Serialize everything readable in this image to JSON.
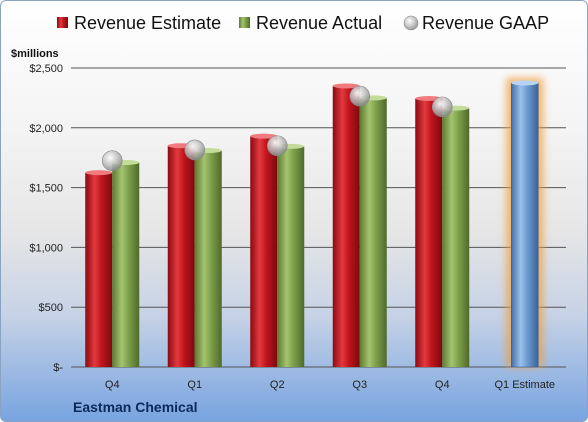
{
  "chart_data": {
    "type": "bar",
    "title": "",
    "ylabel": "$millions",
    "categories": [
      "Q4",
      "Q1",
      "Q2",
      "Q3",
      "Q4",
      "Q1 Estimate"
    ],
    "series": [
      {
        "name": "Revenue Estimate",
        "color": "#c0141c",
        "values": [
          1625,
          1850,
          1930,
          2350,
          2245,
          null
        ]
      },
      {
        "name": "Revenue Actual",
        "color": "#7ea04b",
        "values": [
          1710,
          1810,
          1845,
          2250,
          2165,
          null
        ]
      },
      {
        "name": "Revenue GAAP",
        "color": "#b8b8b8",
        "values": [
          1725,
          1815,
          1850,
          2265,
          2175,
          null
        ]
      }
    ],
    "forecast": {
      "category": "Q1 Estimate",
      "value": 2375,
      "color": "#6b9bd2",
      "highlight": "#f0a040"
    },
    "ylim": [
      0,
      2500
    ],
    "yticks": [
      0,
      500,
      1000,
      1500,
      2000,
      2500
    ],
    "ytick_labels": [
      "$-",
      "$500",
      "$1,000",
      "$1,500",
      "$2,000",
      "$2,500"
    ],
    "grid": true,
    "legend": "top",
    "footer": "Eastman Chemical"
  }
}
